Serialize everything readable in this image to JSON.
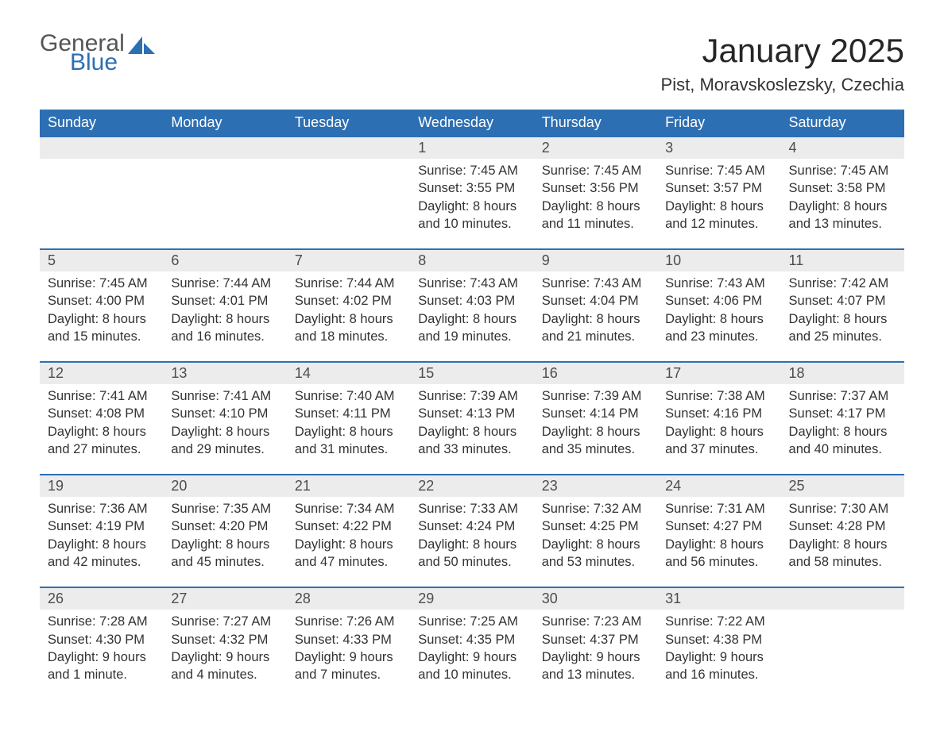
{
  "brand": {
    "word1": "General",
    "word2": "Blue",
    "color_primary": "#2d6fb3",
    "color_secondary": "#555555"
  },
  "title": "January 2025",
  "location": "Pist, Moravskoslezsky, Czechia",
  "theme": {
    "header_bg": "#2d6fb3",
    "header_text": "#ffffff",
    "daynum_bg": "#ececec",
    "border_color": "#2d6fb3",
    "body_text": "#333333",
    "page_bg": "#ffffff"
  },
  "weekdays": [
    "Sunday",
    "Monday",
    "Tuesday",
    "Wednesday",
    "Thursday",
    "Friday",
    "Saturday"
  ],
  "weeks": [
    [
      null,
      null,
      null,
      {
        "n": "1",
        "sunrise": "7:45 AM",
        "sunset": "3:55 PM",
        "daylight": "8 hours and 10 minutes."
      },
      {
        "n": "2",
        "sunrise": "7:45 AM",
        "sunset": "3:56 PM",
        "daylight": "8 hours and 11 minutes."
      },
      {
        "n": "3",
        "sunrise": "7:45 AM",
        "sunset": "3:57 PM",
        "daylight": "8 hours and 12 minutes."
      },
      {
        "n": "4",
        "sunrise": "7:45 AM",
        "sunset": "3:58 PM",
        "daylight": "8 hours and 13 minutes."
      }
    ],
    [
      {
        "n": "5",
        "sunrise": "7:45 AM",
        "sunset": "4:00 PM",
        "daylight": "8 hours and 15 minutes."
      },
      {
        "n": "6",
        "sunrise": "7:44 AM",
        "sunset": "4:01 PM",
        "daylight": "8 hours and 16 minutes."
      },
      {
        "n": "7",
        "sunrise": "7:44 AM",
        "sunset": "4:02 PM",
        "daylight": "8 hours and 18 minutes."
      },
      {
        "n": "8",
        "sunrise": "7:43 AM",
        "sunset": "4:03 PM",
        "daylight": "8 hours and 19 minutes."
      },
      {
        "n": "9",
        "sunrise": "7:43 AM",
        "sunset": "4:04 PM",
        "daylight": "8 hours and 21 minutes."
      },
      {
        "n": "10",
        "sunrise": "7:43 AM",
        "sunset": "4:06 PM",
        "daylight": "8 hours and 23 minutes."
      },
      {
        "n": "11",
        "sunrise": "7:42 AM",
        "sunset": "4:07 PM",
        "daylight": "8 hours and 25 minutes."
      }
    ],
    [
      {
        "n": "12",
        "sunrise": "7:41 AM",
        "sunset": "4:08 PM",
        "daylight": "8 hours and 27 minutes."
      },
      {
        "n": "13",
        "sunrise": "7:41 AM",
        "sunset": "4:10 PM",
        "daylight": "8 hours and 29 minutes."
      },
      {
        "n": "14",
        "sunrise": "7:40 AM",
        "sunset": "4:11 PM",
        "daylight": "8 hours and 31 minutes."
      },
      {
        "n": "15",
        "sunrise": "7:39 AM",
        "sunset": "4:13 PM",
        "daylight": "8 hours and 33 minutes."
      },
      {
        "n": "16",
        "sunrise": "7:39 AM",
        "sunset": "4:14 PM",
        "daylight": "8 hours and 35 minutes."
      },
      {
        "n": "17",
        "sunrise": "7:38 AM",
        "sunset": "4:16 PM",
        "daylight": "8 hours and 37 minutes."
      },
      {
        "n": "18",
        "sunrise": "7:37 AM",
        "sunset": "4:17 PM",
        "daylight": "8 hours and 40 minutes."
      }
    ],
    [
      {
        "n": "19",
        "sunrise": "7:36 AM",
        "sunset": "4:19 PM",
        "daylight": "8 hours and 42 minutes."
      },
      {
        "n": "20",
        "sunrise": "7:35 AM",
        "sunset": "4:20 PM",
        "daylight": "8 hours and 45 minutes."
      },
      {
        "n": "21",
        "sunrise": "7:34 AM",
        "sunset": "4:22 PM",
        "daylight": "8 hours and 47 minutes."
      },
      {
        "n": "22",
        "sunrise": "7:33 AM",
        "sunset": "4:24 PM",
        "daylight": "8 hours and 50 minutes."
      },
      {
        "n": "23",
        "sunrise": "7:32 AM",
        "sunset": "4:25 PM",
        "daylight": "8 hours and 53 minutes."
      },
      {
        "n": "24",
        "sunrise": "7:31 AM",
        "sunset": "4:27 PM",
        "daylight": "8 hours and 56 minutes."
      },
      {
        "n": "25",
        "sunrise": "7:30 AM",
        "sunset": "4:28 PM",
        "daylight": "8 hours and 58 minutes."
      }
    ],
    [
      {
        "n": "26",
        "sunrise": "7:28 AM",
        "sunset": "4:30 PM",
        "daylight": "9 hours and 1 minute."
      },
      {
        "n": "27",
        "sunrise": "7:27 AM",
        "sunset": "4:32 PM",
        "daylight": "9 hours and 4 minutes."
      },
      {
        "n": "28",
        "sunrise": "7:26 AM",
        "sunset": "4:33 PM",
        "daylight": "9 hours and 7 minutes."
      },
      {
        "n": "29",
        "sunrise": "7:25 AM",
        "sunset": "4:35 PM",
        "daylight": "9 hours and 10 minutes."
      },
      {
        "n": "30",
        "sunrise": "7:23 AM",
        "sunset": "4:37 PM",
        "daylight": "9 hours and 13 minutes."
      },
      {
        "n": "31",
        "sunrise": "7:22 AM",
        "sunset": "4:38 PM",
        "daylight": "9 hours and 16 minutes."
      },
      null
    ]
  ],
  "labels": {
    "sunrise": "Sunrise:",
    "sunset": "Sunset:",
    "daylight": "Daylight:"
  }
}
